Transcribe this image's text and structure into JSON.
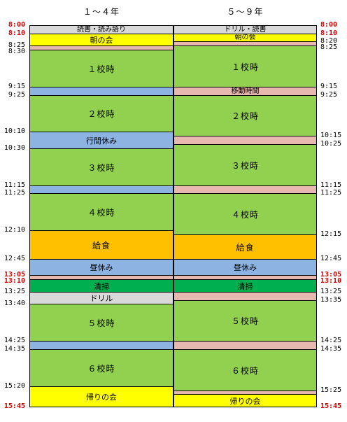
{
  "headers": {
    "left": "１～４年",
    "right": "５～９年"
  },
  "colors": {
    "gray": "#d9d9d9",
    "yellow": "#ffff00",
    "pink": "#e6b8b0",
    "green": "#92d050",
    "blue": "#8db3e2",
    "orange": "#ffc000",
    "darkgreen": "#00b050",
    "red_time": "#d40000"
  },
  "grade1_4": [
    {
      "label": "読書・読み語り",
      "start": "8:00",
      "end": "8:10",
      "color": "gray"
    },
    {
      "label": "朝の会",
      "start": "8:10",
      "end": "8:25",
      "color": "yellow"
    },
    {
      "label": "",
      "start": "8:25",
      "end": "8:30",
      "color": "pink"
    },
    {
      "label": "１校時",
      "start": "8:30",
      "end": "9:15",
      "color": "green"
    },
    {
      "label": "",
      "start": "9:15",
      "end": "9:25",
      "color": "blue"
    },
    {
      "label": "２校時",
      "start": "9:25",
      "end": "10:10",
      "color": "green"
    },
    {
      "label": "行間休み",
      "start": "10:10",
      "end": "10:30",
      "color": "blue"
    },
    {
      "label": "３校時",
      "start": "10:30",
      "end": "11:15",
      "color": "green"
    },
    {
      "label": "",
      "start": "11:15",
      "end": "11:25",
      "color": "blue"
    },
    {
      "label": "４校時",
      "start": "11:25",
      "end": "12:10",
      "color": "green"
    },
    {
      "label": "給食",
      "start": "12:10",
      "end": "12:45",
      "color": "orange"
    },
    {
      "label": "昼休み",
      "start": "12:45",
      "end": "13:05",
      "color": "blue"
    },
    {
      "label": "",
      "start": "13:05",
      "end": "13:10",
      "color": "pink"
    },
    {
      "label": "清掃",
      "start": "13:10",
      "end": "13:25",
      "color": "darkgreen"
    },
    {
      "label": "ドリル",
      "start": "13:25",
      "end": "13:40",
      "color": "gray"
    },
    {
      "label": "５校時",
      "start": "13:40",
      "end": "14:25",
      "color": "green"
    },
    {
      "label": "",
      "start": "14:25",
      "end": "14:35",
      "color": "blue"
    },
    {
      "label": "６校時",
      "start": "14:35",
      "end": "15:20",
      "color": "green"
    },
    {
      "label": "帰りの会",
      "start": "15:20",
      "end": "15:45",
      "color": "yellow"
    }
  ],
  "grade5_9": [
    {
      "label": "ドリル・読書",
      "start": "8:00",
      "end": "8:10",
      "color": "gray"
    },
    {
      "label": "朝の会",
      "start": "8:10",
      "end": "8:20",
      "color": "yellow"
    },
    {
      "label": "",
      "start": "8:20",
      "end": "8:25",
      "color": "pink"
    },
    {
      "label": "１校時",
      "start": "8:25",
      "end": "9:15",
      "color": "green"
    },
    {
      "label": "移動時間",
      "start": "9:15",
      "end": "9:25",
      "color": "pink"
    },
    {
      "label": "２校時",
      "start": "9:25",
      "end": "10:15",
      "color": "green"
    },
    {
      "label": "",
      "start": "10:15",
      "end": "10:25",
      "color": "pink"
    },
    {
      "label": "３校時",
      "start": "10:25",
      "end": "11:15",
      "color": "green"
    },
    {
      "label": "",
      "start": "11:15",
      "end": "11:25",
      "color": "pink"
    },
    {
      "label": "４校時",
      "start": "11:25",
      "end": "12:15",
      "color": "green"
    },
    {
      "label": "給食",
      "start": "12:15",
      "end": "12:45",
      "color": "orange"
    },
    {
      "label": "昼休み",
      "start": "12:45",
      "end": "13:05",
      "color": "blue"
    },
    {
      "label": "",
      "start": "13:05",
      "end": "13:10",
      "color": "pink"
    },
    {
      "label": "清掃",
      "start": "13:10",
      "end": "13:25",
      "color": "darkgreen"
    },
    {
      "label": "",
      "start": "13:25",
      "end": "13:35",
      "color": "pink"
    },
    {
      "label": "５校時",
      "start": "13:35",
      "end": "14:25",
      "color": "green"
    },
    {
      "label": "",
      "start": "14:25",
      "end": "14:35",
      "color": "pink"
    },
    {
      "label": "６校時",
      "start": "14:35",
      "end": "15:25",
      "color": "green"
    },
    {
      "label": "",
      "start": "15:25",
      "end": "15:30",
      "color": "pink"
    },
    {
      "label": "帰りの会",
      "start": "15:30",
      "end": "15:45",
      "color": "yellow"
    }
  ],
  "times_left": [
    "8:00",
    "8:10",
    "8:25",
    "8:30",
    "9:15",
    "9:25",
    "10:10",
    "10:30",
    "11:15",
    "11:25",
    "12:10",
    "12:45",
    "13:05",
    "13:10",
    "13:25",
    "13:40",
    "14:25",
    "14:35",
    "15:20",
    "15:45"
  ],
  "times_right": [
    "8:00",
    "8:10",
    "8:20",
    "8:25",
    "9:15",
    "9:25",
    "10:15",
    "10:25",
    "11:15",
    "11:25",
    "12:15",
    "12:45",
    "13:05",
    "13:10",
    "13:25",
    "13:35",
    "14:25",
    "14:35",
    "15:25",
    "15:45"
  ],
  "red_times": [
    "8:00",
    "8:10",
    "13:05",
    "13:10",
    "15:45"
  ]
}
